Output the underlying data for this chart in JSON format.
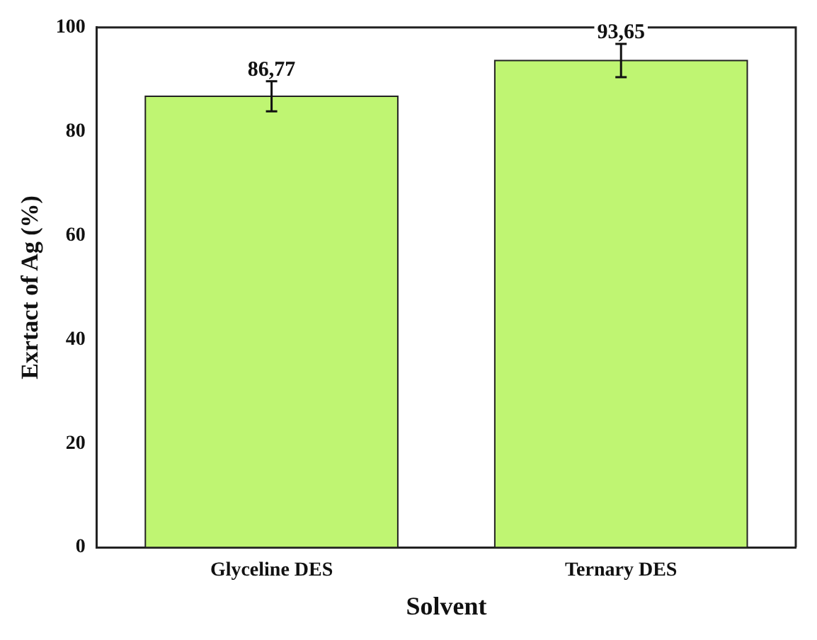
{
  "chart_data": {
    "type": "bar",
    "xlabel": "Solvent",
    "ylabel": "Exrtact of Ag (%)",
    "categories": [
      "Glyceline DES",
      "Ternary DES"
    ],
    "values": [
      86.77,
      93.65
    ],
    "errors": [
      2.9,
      3.2
    ],
    "value_labels": [
      "86,77",
      "93,65"
    ],
    "color": "#bff572",
    "ylim": [
      0,
      100
    ],
    "yticks": [
      0,
      20,
      40,
      60,
      80,
      100
    ],
    "grid": false,
    "legend": false
  }
}
